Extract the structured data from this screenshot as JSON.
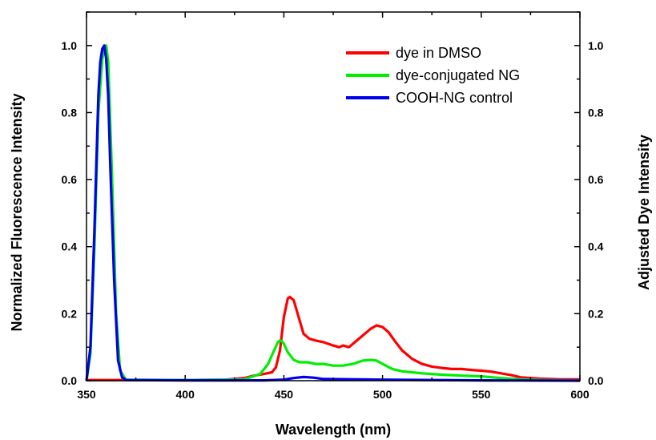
{
  "chart_data": {
    "type": "line",
    "xlabel": "Wavelength (nm)",
    "ylabel": "Normalized Fluorescence Intensity",
    "y2label": "Adjusted Dye Intensity",
    "xlim": [
      350,
      600
    ],
    "ylim": [
      0,
      1.1
    ],
    "y2lim": [
      0,
      1.1
    ],
    "x_ticks": [
      350,
      400,
      450,
      500,
      550,
      600
    ],
    "y_ticks": [
      0.0,
      0.2,
      0.4,
      0.6,
      0.8,
      1.0
    ],
    "y_tick_labels": [
      "0.0",
      "0.2",
      "0.4",
      "0.6",
      "0.8",
      "1.0"
    ],
    "y2_ticks": [
      0.0,
      0.2,
      0.4,
      0.6,
      0.8,
      1.0
    ],
    "y2_tick_labels": [
      "0.0",
      "0.2",
      "0.4",
      "0.6",
      "0.8",
      "1.0"
    ],
    "grid": false,
    "legend_position": "top-right",
    "series": [
      {
        "name": "dye in DMSO",
        "color": "#ff0000",
        "x": [
          350,
          370,
          400,
          420,
          430,
          435,
          440,
          444,
          446,
          448,
          450,
          452,
          453,
          455,
          457,
          460,
          463,
          466,
          470,
          475,
          478,
          480,
          483,
          486,
          490,
          494,
          497,
          500,
          503,
          506,
          510,
          515,
          520,
          525,
          530,
          535,
          540,
          545,
          550,
          555,
          560,
          565,
          570,
          580,
          590,
          600
        ],
        "y": [
          0.002,
          0.002,
          0.002,
          0.003,
          0.008,
          0.015,
          0.02,
          0.025,
          0.04,
          0.09,
          0.19,
          0.245,
          0.25,
          0.24,
          0.2,
          0.14,
          0.125,
          0.12,
          0.115,
          0.105,
          0.1,
          0.105,
          0.1,
          0.115,
          0.135,
          0.155,
          0.165,
          0.16,
          0.145,
          0.12,
          0.09,
          0.065,
          0.05,
          0.042,
          0.038,
          0.035,
          0.035,
          0.032,
          0.03,
          0.027,
          0.022,
          0.017,
          0.01,
          0.006,
          0.004,
          0.004
        ]
      },
      {
        "name": "dye-conjugated NG",
        "color": "#00ee00",
        "x": [
          350,
          352,
          354,
          356,
          358,
          359,
          360,
          361,
          363,
          365,
          367,
          370,
          400,
          430,
          438,
          442,
          445,
          447,
          448,
          449,
          450,
          452,
          455,
          458,
          462,
          466,
          470,
          475,
          480,
          485,
          490,
          494,
          497,
          500,
          505,
          510,
          520,
          530,
          540,
          550,
          560,
          570,
          580,
          600
        ],
        "y": [
          0.0,
          0.08,
          0.4,
          0.8,
          0.96,
          0.99,
          1.0,
          0.95,
          0.6,
          0.2,
          0.03,
          0.003,
          0.002,
          0.004,
          0.02,
          0.05,
          0.09,
          0.115,
          0.12,
          0.118,
          0.11,
          0.085,
          0.062,
          0.055,
          0.055,
          0.05,
          0.05,
          0.045,
          0.045,
          0.05,
          0.06,
          0.062,
          0.06,
          0.05,
          0.035,
          0.028,
          0.022,
          0.018,
          0.015,
          0.013,
          0.008,
          0.004,
          0.002,
          0.0
        ]
      },
      {
        "name": "COOH-NG control",
        "color": "#0000ee",
        "x": [
          350,
          352,
          354,
          356,
          357,
          358,
          359,
          360,
          361,
          362,
          364,
          366,
          368,
          370,
          400,
          440,
          450,
          455,
          460,
          465,
          470,
          500,
          550,
          600
        ],
        "y": [
          0.0,
          0.1,
          0.45,
          0.85,
          0.95,
          0.99,
          1.0,
          0.96,
          0.85,
          0.65,
          0.3,
          0.06,
          0.01,
          0.002,
          0.001,
          0.001,
          0.003,
          0.008,
          0.011,
          0.009,
          0.005,
          0.003,
          0.001,
          0.0
        ]
      }
    ]
  }
}
